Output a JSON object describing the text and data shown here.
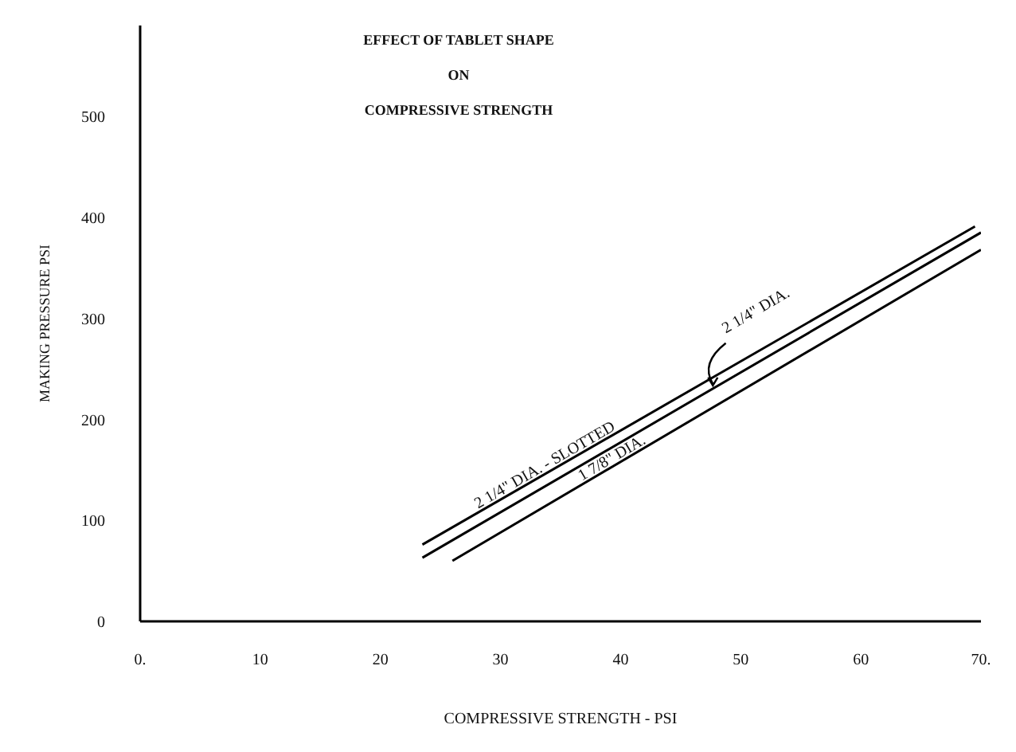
{
  "chart_data": {
    "type": "line",
    "title": "EFFECT OF TABLET SHAPE\nON\nCOMPRESSIVE STRENGTH",
    "xlabel": "COMPRESSIVE STRENGTH - PSI",
    "ylabel": "MAKING PRESSURE PSI",
    "series": [
      {
        "name": "2 1/4\" DIA. - SLOTTED",
        "color": "#000000",
        "x": [
          23.5,
          69.5
        ],
        "values": [
          76,
          391
        ]
      },
      {
        "name": "2 1/4\" DIA.",
        "color": "#000000",
        "x": [
          23.5,
          70
        ],
        "values": [
          63,
          385
        ]
      },
      {
        "name": "1 7/8\" DIA.",
        "color": "#000000",
        "x": [
          26,
          70
        ],
        "values": [
          60,
          368
        ]
      }
    ],
    "xlim": [
      0,
      70
    ],
    "xticks": [
      {
        "value": 0,
        "label": "0."
      },
      10,
      20,
      30,
      40,
      50,
      60,
      {
        "value": 70,
        "label": "70."
      }
    ],
    "ylim": [
      0,
      590
    ],
    "yticks": [
      0,
      100,
      200,
      300,
      400,
      500
    ],
    "grid": false,
    "legend": false,
    "marker": "none",
    "line_style": "solid"
  }
}
